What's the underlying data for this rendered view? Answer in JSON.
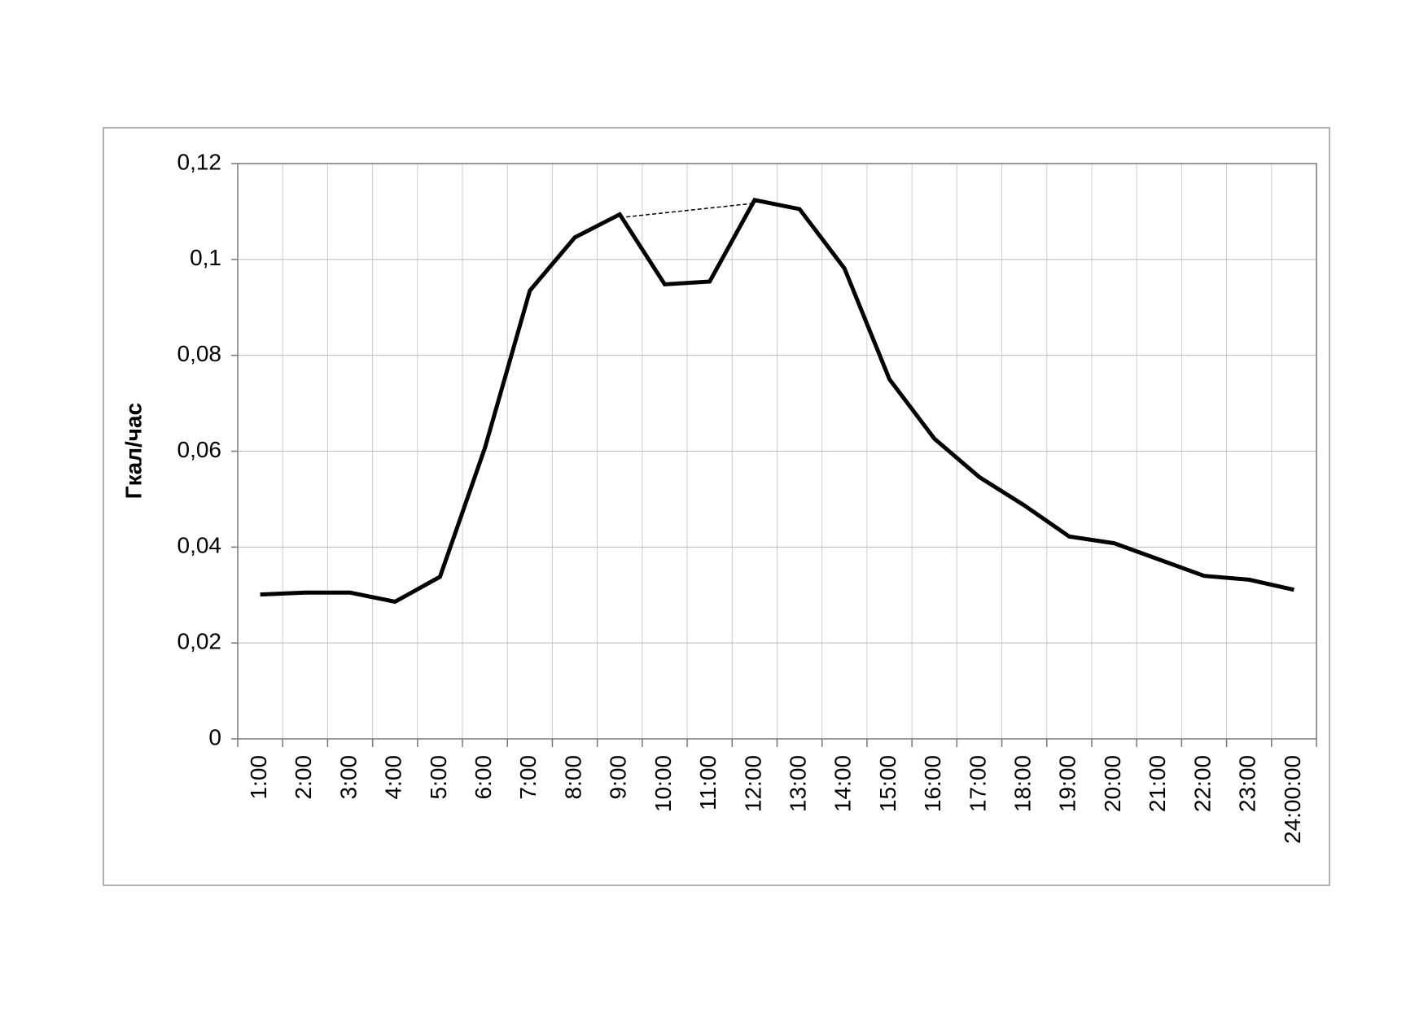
{
  "chart_data": {
    "type": "line",
    "y_label": "Гкал/час",
    "categories": [
      "1:00",
      "2:00",
      "3:00",
      "4:00",
      "5:00",
      "6:00",
      "7:00",
      "8:00",
      "9:00",
      "10:00",
      "11:00",
      "12:00",
      "13:00",
      "14:00",
      "15:00",
      "16:00",
      "17:00",
      "18:00",
      "19:00",
      "20:00",
      "21:00",
      "22:00",
      "23:00",
      "24:00:00"
    ],
    "values": [
      0.0301,
      0.0305,
      0.0305,
      0.0286,
      0.0338,
      0.0607,
      0.0935,
      0.1046,
      0.1094,
      0.0948,
      0.0954,
      0.1124,
      0.1105,
      0.0981,
      0.075,
      0.0626,
      0.0546,
      0.0487,
      0.0422,
      0.0408,
      0.0374,
      0.034,
      0.0332,
      0.0311
    ],
    "color": "#000000",
    "dashed_link": [
      8,
      11
    ],
    "ylim": [
      0,
      0.12
    ],
    "yticks": [
      0,
      {
        "value": 0.02,
        "label": "0,02"
      },
      {
        "value": 0.04,
        "label": "0,04"
      },
      {
        "value": 0.06,
        "label": "0,06"
      },
      {
        "value": 0.08,
        "label": "0,08"
      },
      {
        "value": 0.1,
        "label": "0,1"
      },
      {
        "value": 0.12,
        "label": "0,12"
      }
    ],
    "grid": true
  }
}
